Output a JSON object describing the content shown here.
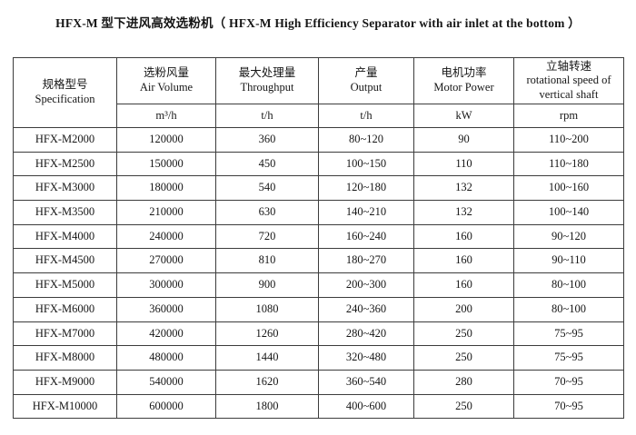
{
  "title": "HFX-M 型下进风高效选粉机（ HFX-M High Efficiency Separator with air inlet at the bottom ）",
  "table": {
    "columns": [
      {
        "label_cn": "规格型号",
        "label_en": "Specification",
        "unit": ""
      },
      {
        "label_cn": "选粉风量",
        "label_en": "Air Volume",
        "unit": "m³/h"
      },
      {
        "label_cn": "最大处理量",
        "label_en": "Throughput",
        "unit": "t/h"
      },
      {
        "label_cn": "产量",
        "label_en": "Output",
        "unit": "t/h"
      },
      {
        "label_cn": "电机功率",
        "label_en": "Motor Power",
        "unit": "kW"
      },
      {
        "label_cn": "立轴转速",
        "label_en": "rotational speed of vertical shaft",
        "unit": "rpm"
      }
    ],
    "rows": [
      [
        "HFX-M2000",
        "120000",
        "360",
        "80~120",
        "90",
        "110~200"
      ],
      [
        "HFX-M2500",
        "150000",
        "450",
        "100~150",
        "110",
        "110~180"
      ],
      [
        "HFX-M3000",
        "180000",
        "540",
        "120~180",
        "132",
        "100~160"
      ],
      [
        "HFX-M3500",
        "210000",
        "630",
        "140~210",
        "132",
        "100~140"
      ],
      [
        "HFX-M4000",
        "240000",
        "720",
        "160~240",
        "160",
        "90~120"
      ],
      [
        "HFX-M4500",
        "270000",
        "810",
        "180~270",
        "160",
        "90~110"
      ],
      [
        "HFX-M5000",
        "300000",
        "900",
        "200~300",
        "160",
        "80~100"
      ],
      [
        "HFX-M6000",
        "360000",
        "1080",
        "240~360",
        "200",
        "80~100"
      ],
      [
        "HFX-M7000",
        "420000",
        "1260",
        "280~420",
        "250",
        "75~95"
      ],
      [
        "HFX-M8000",
        "480000",
        "1440",
        "320~480",
        "250",
        "75~95"
      ],
      [
        "HFX-M9000",
        "540000",
        "1620",
        "360~540",
        "280",
        "70~95"
      ],
      [
        "HFX-M10000",
        "600000",
        "1800",
        "400~600",
        "250",
        "70~95"
      ]
    ]
  }
}
